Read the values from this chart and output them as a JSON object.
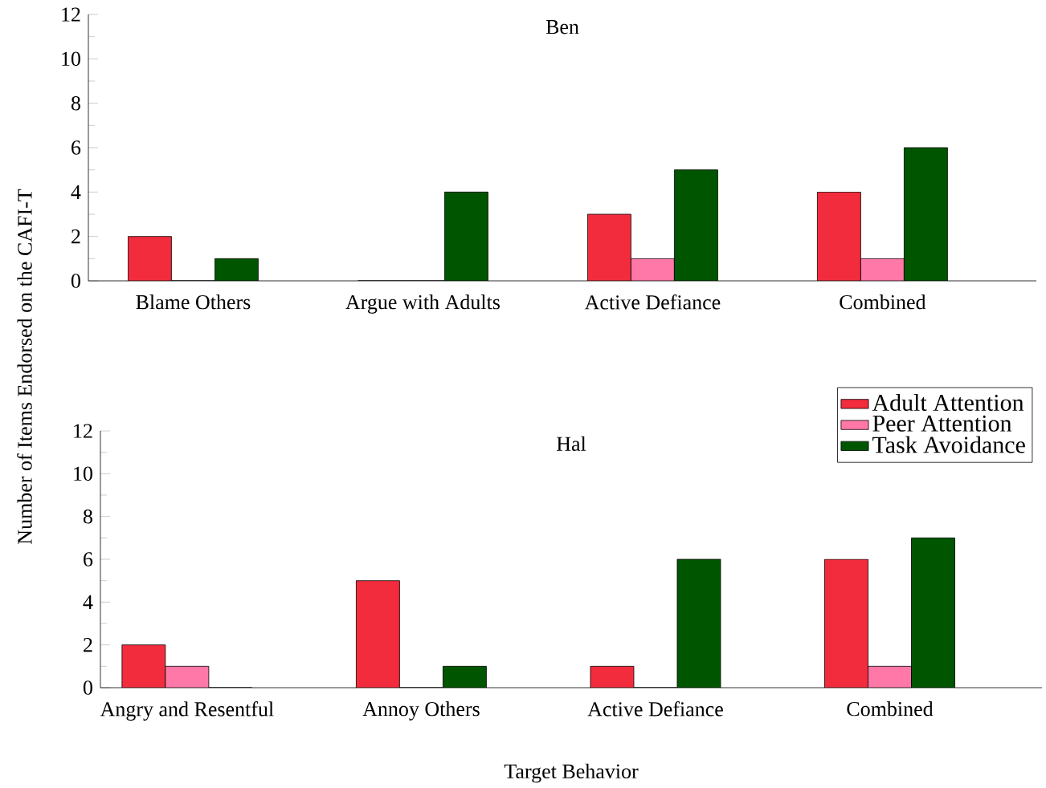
{
  "chart_data": [
    {
      "type": "bar",
      "title": "Ben",
      "categories": [
        "Blame Others",
        "Argue with Adults",
        "Active Defiance",
        "Combined"
      ],
      "series": [
        {
          "color": "#f22c3c",
          "values": [
            2,
            0,
            3,
            4
          ]
        },
        {
          "color": "#ff78a8",
          "values": [
            0,
            0,
            1,
            1
          ]
        },
        {
          "color": "#005500",
          "values": [
            1,
            4,
            5,
            6
          ]
        }
      ],
      "ylim": [
        0,
        12
      ],
      "yticks": [
        0,
        2,
        4,
        6,
        8,
        10,
        12
      ],
      "grid": false,
      "legend": false
    },
    {
      "type": "bar",
      "title": "Hal",
      "categories": [
        "Angry and Resentful",
        "Annoy Others",
        "Active Defiance",
        "Combined"
      ],
      "series": [
        {
          "name": "Adult Attention",
          "color": "#f22c3c",
          "values": [
            2,
            5,
            1,
            6
          ]
        },
        {
          "name": "Peer Attention",
          "color": "#ff78a8",
          "values": [
            1,
            0,
            0,
            1
          ]
        },
        {
          "name": "Task Avoidance",
          "color": "#005500",
          "values": [
            0,
            1,
            6,
            7
          ]
        }
      ],
      "ylim": [
        0,
        12
      ],
      "yticks": [
        0,
        2,
        4,
        6,
        8,
        10,
        12
      ],
      "grid": false,
      "legend": "top right",
      "xlabel": "Target Behavior",
      "ylabel": "Number of Items Endorsed on the CAFI-T"
    }
  ]
}
